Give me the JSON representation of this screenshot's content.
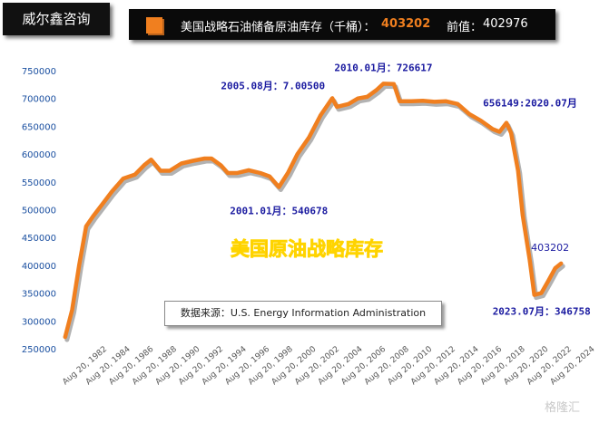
{
  "brand": "威尔鑫咨询",
  "header": {
    "title": "美国战略石油储备原油库存（千桶）：",
    "value": "403202",
    "prev_label": "前值：",
    "prev_value": "402976",
    "accent_color": "#f07f1f"
  },
  "source": "数据来源：U.S. Energy Information Administration",
  "watermark": "格隆汇",
  "chart_data": {
    "type": "line",
    "title": "美国原油战略库存",
    "xlabel": "",
    "ylabel": "",
    "ylim": [
      250000,
      750000
    ],
    "yticks": [
      250000,
      300000,
      350000,
      400000,
      450000,
      500000,
      550000,
      600000,
      650000,
      700000,
      750000
    ],
    "xlim": [
      1982.3,
      2025.6
    ],
    "xticks": [
      {
        "x": 1982.6,
        "label": "Aug 20, 1982"
      },
      {
        "x": 1984.6,
        "label": "Aug 20, 1984"
      },
      {
        "x": 1986.6,
        "label": "Aug 20, 1986"
      },
      {
        "x": 1988.6,
        "label": "Aug 20, 1988"
      },
      {
        "x": 1990.6,
        "label": "Aug 20, 1990"
      },
      {
        "x": 1992.6,
        "label": "Aug 20, 1992"
      },
      {
        "x": 1994.6,
        "label": "Aug 20, 1994"
      },
      {
        "x": 1996.6,
        "label": "Aug 20, 1996"
      },
      {
        "x": 1998.6,
        "label": "Aug 20, 1998"
      },
      {
        "x": 2000.6,
        "label": "Aug 20, 2000"
      },
      {
        "x": 2002.6,
        "label": "Aug 20, 2002"
      },
      {
        "x": 2004.6,
        "label": "Aug 20, 2004"
      },
      {
        "x": 2006.6,
        "label": "Aug 20, 2006"
      },
      {
        "x": 2008.6,
        "label": "Aug 20, 2008"
      },
      {
        "x": 2010.6,
        "label": "Aug 20, 2010"
      },
      {
        "x": 2012.6,
        "label": "Aug 20, 2012"
      },
      {
        "x": 2014.6,
        "label": "Aug 20, 2014"
      },
      {
        "x": 2016.6,
        "label": "Aug 20, 2016"
      },
      {
        "x": 2018.6,
        "label": "Aug 20, 2018"
      },
      {
        "x": 2020.6,
        "label": "Aug 20, 2020"
      },
      {
        "x": 2022.6,
        "label": "Aug 20, 2022"
      },
      {
        "x": 2024.6,
        "label": "Aug 20, 2024"
      }
    ],
    "grid": false,
    "line_color": "#f07f1f",
    "series": [
      {
        "x": [
          1982.6,
          1983.2,
          1983.8,
          1984.4,
          1985.0,
          1985.8,
          1986.6,
          1987.6,
          1988.6,
          1989.4,
          1990.0,
          1990.8,
          1991.6,
          1992.6,
          1993.6,
          1994.6,
          1995.2,
          1996.0,
          1996.6,
          1997.4,
          1998.4,
          1999.4,
          2000.2,
          2001.0,
          2001.8,
          2002.6,
          2003.6,
          2004.6,
          2005.6,
          2006.0,
          2007.0,
          2007.8,
          2008.6,
          2009.4,
          2010.0,
          2010.9,
          2011.4,
          2012.4,
          2013.4,
          2014.4,
          2015.4,
          2016.4,
          2017.4,
          2018.4,
          2019.4,
          2020.0,
          2020.6,
          2021.0,
          2021.6,
          2022.0,
          2022.6,
          2023.0,
          2023.6,
          2024.2,
          2024.8,
          2025.3
        ],
        "values": [
          271000,
          320000,
          400000,
          470000,
          488000,
          510000,
          532000,
          556000,
          563000,
          580000,
          590000,
          570000,
          570000,
          583000,
          588000,
          592000,
          592000,
          580000,
          566000,
          566000,
          571000,
          566000,
          560000,
          540678,
          567000,
          600000,
          630000,
          670000,
          700500,
          685000,
          690000,
          700000,
          703000,
          715000,
          726617,
          726000,
          695000,
          695000,
          696000,
          694000,
          695000,
          690000,
          672000,
          660000,
          645000,
          640000,
          656149,
          638000,
          570000,
          490000,
          410000,
          346758,
          350000,
          372000,
          395000,
          403202
        ]
      }
    ],
    "annotations": [
      {
        "text": "2005.08月：7.00500",
        "x": 2005.6,
        "y": 700500
      },
      {
        "text": "2010.01月：726617",
        "x": 2010.0,
        "y": 726617
      },
      {
        "text": "2001.01月：540678",
        "x": 2001.0,
        "y": 540678
      },
      {
        "text": "656149:2020.07月",
        "x": 2020.6,
        "y": 656149
      },
      {
        "text": "2023.07月：346758",
        "x": 2023.0,
        "y": 346758
      },
      {
        "text": "403202",
        "x": 2025.3,
        "y": 403202
      }
    ]
  }
}
